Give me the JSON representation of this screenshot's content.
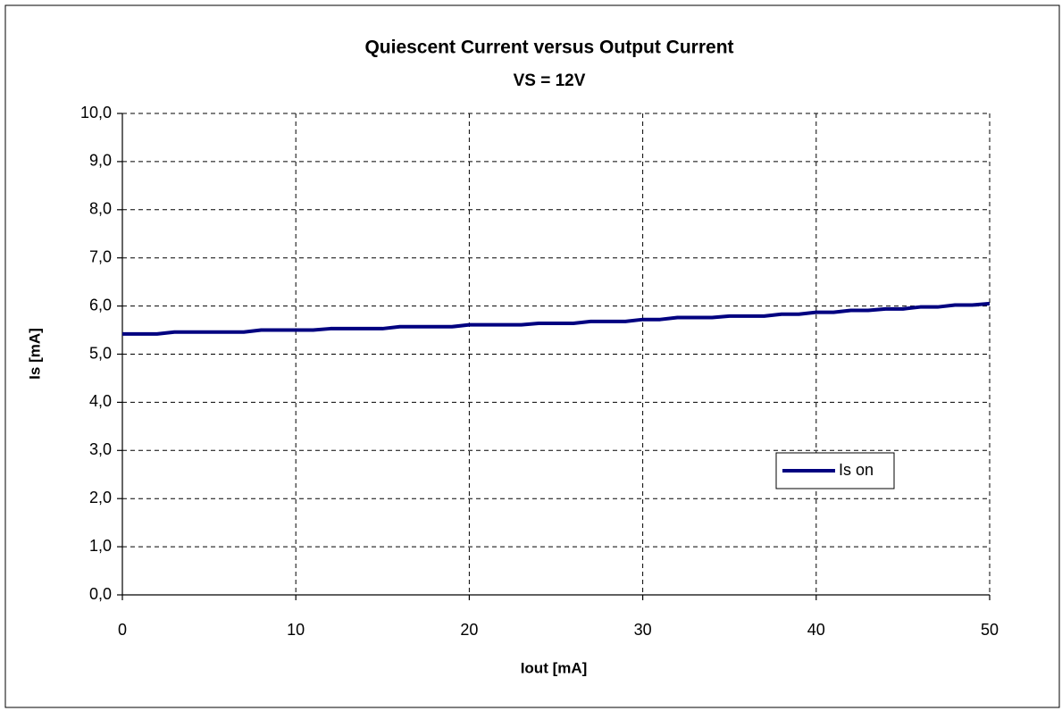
{
  "chart_data": {
    "type": "line",
    "title": "Quiescent Current versus Output Current",
    "subtitle": "VS = 12V",
    "x_label": "Iout [mA]",
    "y_label": "Is [mA]",
    "x": [
      0,
      1,
      2,
      3,
      4,
      5,
      6,
      7,
      8,
      9,
      10,
      11,
      12,
      13,
      14,
      15,
      16,
      17,
      18,
      19,
      20,
      21,
      22,
      23,
      24,
      25,
      26,
      27,
      28,
      29,
      30,
      31,
      32,
      33,
      34,
      35,
      36,
      37,
      38,
      39,
      40,
      41,
      42,
      43,
      44,
      45,
      46,
      47,
      48,
      49,
      50
    ],
    "series": [
      {
        "name": "Is on",
        "color": "#000080",
        "values": [
          5.42,
          5.42,
          5.42,
          5.46,
          5.46,
          5.46,
          5.46,
          5.46,
          5.5,
          5.5,
          5.5,
          5.5,
          5.53,
          5.53,
          5.53,
          5.53,
          5.57,
          5.57,
          5.57,
          5.57,
          5.61,
          5.61,
          5.61,
          5.61,
          5.64,
          5.64,
          5.64,
          5.68,
          5.68,
          5.68,
          5.72,
          5.72,
          5.76,
          5.76,
          5.76,
          5.79,
          5.79,
          5.79,
          5.83,
          5.83,
          5.87,
          5.87,
          5.91,
          5.91,
          5.94,
          5.94,
          5.98,
          5.98,
          6.02,
          6.02,
          6.05
        ]
      }
    ],
    "xlim": [
      0,
      50
    ],
    "xticks": [
      0,
      10,
      20,
      30,
      40,
      50
    ],
    "ylim": [
      0,
      10
    ],
    "yticks": [
      {
        "value": 0,
        "label": "0,0"
      },
      {
        "value": 1,
        "label": "1,0"
      },
      {
        "value": 2,
        "label": "2,0"
      },
      {
        "value": 3,
        "label": "3,0"
      },
      {
        "value": 4,
        "label": "4,0"
      },
      {
        "value": 5,
        "label": "5,0"
      },
      {
        "value": 6,
        "label": "6,0"
      },
      {
        "value": 7,
        "label": "7,0"
      },
      {
        "value": 8,
        "label": "8,0"
      },
      {
        "value": 9,
        "label": "9,0"
      },
      {
        "value": 10,
        "label": "10,0"
      }
    ],
    "grid": true,
    "legend": "lower right"
  }
}
